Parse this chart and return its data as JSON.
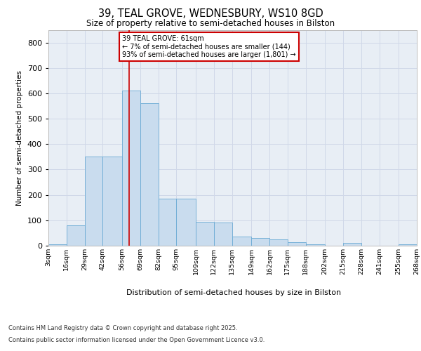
{
  "title_line1": "39, TEAL GROVE, WEDNESBURY, WS10 8GD",
  "title_line2": "Size of property relative to semi-detached houses in Bilston",
  "xlabel": "Distribution of semi-detached houses by size in Bilston",
  "ylabel": "Number of semi-detached properties",
  "annotation_title": "39 TEAL GROVE: 61sqm",
  "annotation_line2": "← 7% of semi-detached houses are smaller (144)",
  "annotation_line3": "93% of semi-detached houses are larger (1,801) →",
  "footnote1": "Contains HM Land Registry data © Crown copyright and database right 2025.",
  "footnote2": "Contains public sector information licensed under the Open Government Licence v3.0.",
  "marker_value": 61,
  "bin_edges": [
    3,
    16,
    29,
    42,
    56,
    69,
    82,
    95,
    109,
    122,
    135,
    149,
    162,
    175,
    188,
    202,
    215,
    228,
    241,
    255,
    268
  ],
  "bin_labels": [
    "3sqm",
    "16sqm",
    "29sqm",
    "42sqm",
    "56sqm",
    "69sqm",
    "82sqm",
    "95sqm",
    "109sqm",
    "122sqm",
    "135sqm",
    "149sqm",
    "162sqm",
    "175sqm",
    "188sqm",
    "202sqm",
    "215sqm",
    "228sqm",
    "241sqm",
    "255sqm",
    "268sqm"
  ],
  "bar_heights": [
    5,
    80,
    350,
    350,
    610,
    560,
    185,
    185,
    95,
    90,
    35,
    30,
    25,
    15,
    5,
    0,
    10,
    0,
    0,
    5
  ],
  "bar_color": "#c9dcee",
  "bar_edge_color": "#6aaad4",
  "grid_color": "#d0d8e8",
  "background_color": "#e8eef5",
  "marker_line_color": "#cc0000",
  "annotation_box_edge_color": "#cc0000",
  "ylim": [
    0,
    850
  ],
  "yticks": [
    0,
    100,
    200,
    300,
    400,
    500,
    600,
    700,
    800
  ]
}
